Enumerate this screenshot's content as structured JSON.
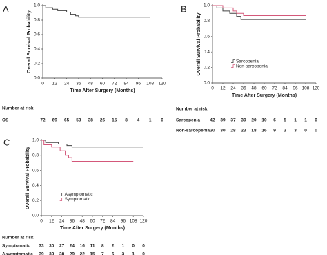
{
  "chart_data": [
    {
      "type": "step",
      "label": "A",
      "xlabel": "Time After Surgery (Months)",
      "ylabel": "Overall Survival Probability",
      "xlim": [
        0,
        120
      ],
      "xticks": [
        0,
        12,
        24,
        36,
        48,
        60,
        72,
        84,
        96,
        108,
        120
      ],
      "ylim": [
        0,
        1
      ],
      "yticks": [
        {
          "value": 0,
          "label": "0.0"
        },
        0.2,
        0.4,
        0.6,
        0.8,
        {
          "value": 1,
          "label": "1.0"
        }
      ],
      "series": [
        {
          "name": "OS",
          "color": "#444444",
          "x": [
            0,
            3,
            10,
            15,
            24,
            28,
            33,
            36,
            108
          ],
          "values": [
            1,
            0.97,
            0.95,
            0.93,
            0.91,
            0.88,
            0.86,
            0.84,
            0.84
          ]
        }
      ],
      "risk_table": {
        "title": "Number at risk",
        "rows": [
          {
            "name": "OS",
            "values": [
              72,
              69,
              65,
              53,
              38,
              26,
              15,
              8,
              4,
              1,
              0
            ]
          }
        ]
      }
    },
    {
      "type": "step",
      "label": "B",
      "xlabel": "Time After Surgery (Months)",
      "ylabel": "Overall Survival Probability",
      "xlim": [
        0,
        120
      ],
      "xticks": [
        0,
        12,
        24,
        36,
        48,
        60,
        72,
        84,
        96,
        108,
        120
      ],
      "ylim": [
        0,
        1
      ],
      "yticks": [
        {
          "value": 0,
          "label": "0.0"
        },
        0.2,
        0.4,
        0.6,
        0.8,
        {
          "value": 1,
          "label": "1.0"
        }
      ],
      "legend": "center left",
      "series": [
        {
          "name": "Sarcopenia",
          "color": "#444444",
          "x": [
            0,
            5,
            12,
            20,
            28,
            33,
            108
          ],
          "values": [
            1,
            0.97,
            0.93,
            0.9,
            0.86,
            0.82,
            0.82
          ]
        },
        {
          "name": "Non-sarcopenia",
          "color": "#d4587a",
          "x": [
            0,
            10,
            12,
            24,
            28,
            36,
            108
          ],
          "values": [
            1,
            1,
            0.97,
            0.93,
            0.9,
            0.87,
            0.87
          ]
        }
      ],
      "risk_table": {
        "title": "Number at risk",
        "rows": [
          {
            "name": "Sarcopenia",
            "values": [
              42,
              39,
              37,
              30,
              20,
              10,
              6,
              5,
              1,
              1,
              0
            ]
          },
          {
            "name": "Non-sarcopenia",
            "values": [
              30,
              30,
              28,
              23,
              18,
              16,
              9,
              3,
              3,
              0,
              0
            ]
          }
        ]
      }
    },
    {
      "type": "step",
      "label": "C",
      "xlabel": "Time After Surgery (Months)",
      "ylabel": "Overall Survival Probability",
      "xlim": [
        0,
        120
      ],
      "xticks": [
        0,
        12,
        24,
        36,
        48,
        60,
        72,
        84,
        96,
        108,
        120
      ],
      "ylim": [
        0,
        1
      ],
      "yticks": [
        {
          "value": 0,
          "label": "0.0"
        },
        0.2,
        0.4,
        0.6,
        0.8,
        {
          "value": 1,
          "label": "1.0"
        }
      ],
      "legend": "center left",
      "series": [
        {
          "name": "Asymptomatic",
          "color": "#444444",
          "x": [
            0,
            5,
            20,
            30,
            36,
            120
          ],
          "values": [
            1,
            0.97,
            0.95,
            0.93,
            0.91,
            0.91
          ]
        },
        {
          "name": "Symptomatic",
          "color": "#d4587a",
          "x": [
            0,
            3,
            12,
            22,
            28,
            32,
            36,
            108
          ],
          "values": [
            1,
            0.94,
            0.91,
            0.86,
            0.8,
            0.77,
            0.72,
            0.72
          ]
        }
      ],
      "risk_table": {
        "title": "Number at risk",
        "rows": [
          {
            "name": "Symptomatic",
            "values": [
              33,
              30,
              27,
              24,
              16,
              11,
              8,
              2,
              1,
              0,
              0
            ]
          },
          {
            "name": "Asymptomatic",
            "values": [
              39,
              39,
              38,
              29,
              22,
              15,
              7,
              6,
              3,
              1,
              0
            ]
          }
        ]
      }
    }
  ]
}
